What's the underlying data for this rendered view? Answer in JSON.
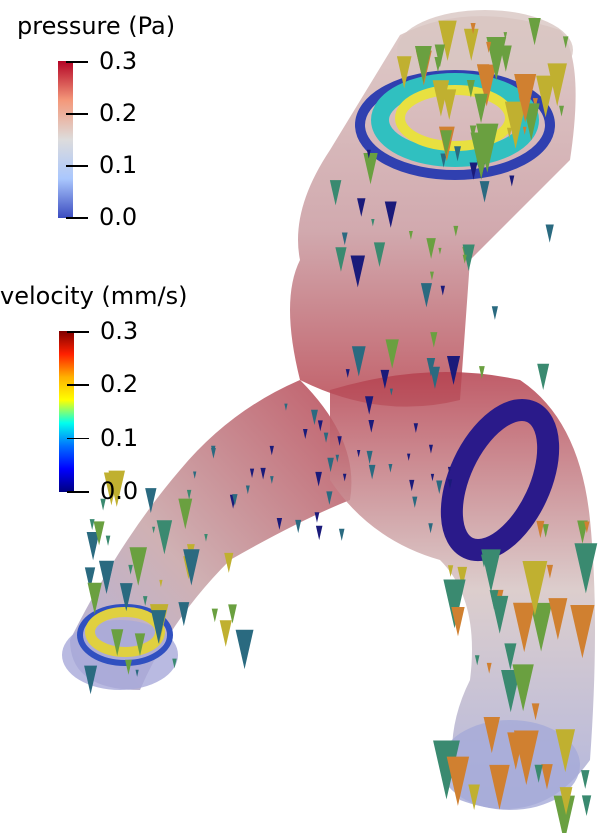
{
  "pressure_legend": {
    "title": "pressure (Pa)",
    "ticks": [
      "0.3",
      "0.2",
      "0.1",
      "0.0"
    ],
    "range": [
      0.0,
      0.3
    ],
    "colormap": [
      "#b40426",
      "#f4987a",
      "#dddcdc",
      "#aac7fd",
      "#3b4cc0"
    ]
  },
  "velocity_legend": {
    "title": "velocity (mm/s)",
    "ticks": [
      "0.3",
      "0.2",
      "0.1",
      "0.0"
    ],
    "range": [
      0.0,
      0.3
    ],
    "colormap": [
      "#7f0000",
      "#ff2000",
      "#ffb000",
      "#ffff00",
      "#00ffee",
      "#0070ff",
      "#0000ff",
      "#000080"
    ]
  }
}
